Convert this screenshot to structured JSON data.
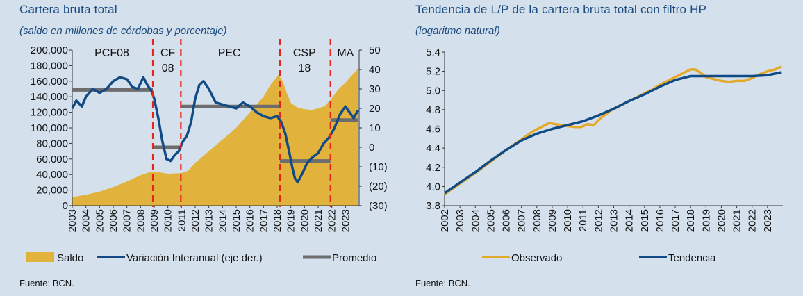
{
  "left": {
    "title": "Cartera bruta total",
    "subtitle": "(saldo en millones de córdobas y porcentaje)",
    "source": "Fuente: BCN."
  },
  "right": {
    "title": "Tendencia de L/P de la cartera bruta total con filtro HP",
    "subtitle": "(logaritmo natural)",
    "source": "Fuente: BCN."
  },
  "chart_data": [
    {
      "type": "area",
      "x_range": [
        2003,
        2024
      ],
      "x_ticks": [
        "2003",
        "2004",
        "2005",
        "2006",
        "2007",
        "2008",
        "2009",
        "2010",
        "2011",
        "2012",
        "2013",
        "2014",
        "2015",
        "2016",
        "2017",
        "2018",
        "2019",
        "2020",
        "2021",
        "2022",
        "2023"
      ],
      "y_left": {
        "range": [
          0,
          200000
        ],
        "ticks": [
          "0",
          "20,000",
          "40,000",
          "60,000",
          "80,000",
          "100,000",
          "120,000",
          "140,000",
          "160,000",
          "180,000",
          "200,000"
        ]
      },
      "y_right": {
        "range": [
          -30,
          50
        ],
        "ticks": [
          "(30)",
          "(20)",
          "(10)",
          "0",
          "10",
          "20",
          "30",
          "40",
          "50"
        ]
      },
      "legend_position": "bottom",
      "series": [
        {
          "name": "Saldo",
          "kind": "area",
          "axis": "left",
          "color": "#e1b33d",
          "x": [
            2003,
            2004,
            2005,
            2006,
            2007,
            2008,
            2008.8,
            2009.3,
            2010,
            2011,
            2011.5,
            2012,
            2013,
            2014,
            2015,
            2016,
            2017,
            2017.5,
            2018.1,
            2018.4,
            2018.7,
            2019,
            2019.5,
            2020,
            2020.5,
            2021,
            2021.5,
            2022,
            2022.5,
            2023,
            2023.5,
            2023.92
          ],
          "y": [
            11000,
            14000,
            18000,
            24000,
            31000,
            39000,
            44000,
            43000,
            41000,
            42000,
            45000,
            55000,
            70000,
            85000,
            100000,
            120000,
            140000,
            155000,
            168000,
            160000,
            145000,
            132000,
            126000,
            124000,
            123000,
            125000,
            128000,
            138000,
            150000,
            158000,
            168000,
            176000
          ]
        },
        {
          "name": "Variación Interanual (eje der.)",
          "kind": "line",
          "axis": "right",
          "color": "#114a84",
          "x": [
            2003,
            2003.3,
            2003.7,
            2004,
            2004.5,
            2005,
            2005.5,
            2006,
            2006.5,
            2007,
            2007.4,
            2007.8,
            2008.2,
            2008.5,
            2008.8,
            2009,
            2009.3,
            2009.6,
            2009.9,
            2010.2,
            2010.5,
            2010.8,
            2011.1,
            2011.4,
            2011.7,
            2012,
            2012.3,
            2012.6,
            2013,
            2013.5,
            2014,
            2014.5,
            2015,
            2015.5,
            2016,
            2016.5,
            2017,
            2017.5,
            2018,
            2018.3,
            2018.6,
            2018.9,
            2019.1,
            2019.3,
            2019.5,
            2019.8,
            2020.2,
            2020.6,
            2021,
            2021.4,
            2021.8,
            2022.2,
            2022.6,
            2023,
            2023.3,
            2023.6,
            2023.92
          ],
          "y": [
            20,
            24,
            21,
            26,
            30,
            28,
            30,
            34,
            36,
            35,
            31,
            30,
            36,
            32,
            29,
            25,
            15,
            3,
            -6,
            -7,
            -4,
            -2,
            3,
            6,
            13,
            25,
            32,
            34,
            30,
            23,
            22,
            21,
            20,
            23,
            21,
            18,
            16,
            15,
            16,
            13,
            7,
            -3,
            -10,
            -16,
            -18,
            -14,
            -8,
            -5,
            -3,
            2,
            5,
            10,
            17,
            21,
            18,
            15,
            19
          ]
        },
        {
          "name": "Promedio",
          "kind": "step",
          "axis": "right",
          "color": "#6d6d6d",
          "segments": [
            {
              "x": [
                2003,
                2008.9
              ],
              "y": 29.5
            },
            {
              "x": [
                2008.9,
                2010.95
              ],
              "y": 0
            },
            {
              "x": [
                2010.95,
                2018.2
              ],
              "y": 21
            },
            {
              "x": [
                2018.2,
                2021.9
              ],
              "y": -7
            },
            {
              "x": [
                2021.9,
                2023.92
              ],
              "y": 14
            }
          ]
        }
      ],
      "period_dividers": [
        2008.9,
        2010.95,
        2018.2,
        2021.9
      ],
      "period_labels": [
        {
          "text": "PCF08",
          "x": 2005.9
        },
        {
          "text": "CF 08",
          "x": 2010.0
        },
        {
          "text": "PEC",
          "x": 2014.5
        },
        {
          "text": "CSP 18",
          "x": 2020.0
        },
        {
          "text": "MA",
          "x": 2023.0
        }
      ]
    },
    {
      "type": "line",
      "x_range": [
        2002,
        2024
      ],
      "x_ticks": [
        "2002",
        "2003",
        "2004",
        "2005",
        "2006",
        "2007",
        "2008",
        "2009",
        "2010",
        "2011",
        "2012",
        "2013",
        "2014",
        "2015",
        "2016",
        "2017",
        "2018",
        "2019",
        "2020",
        "2021",
        "2022",
        "2023"
      ],
      "ylim": [
        3.8,
        5.4
      ],
      "y_ticks": [
        "3.8",
        "4.0",
        "4.2",
        "4.4",
        "4.6",
        "4.8",
        "5.0",
        "5.2",
        "5.4"
      ],
      "legend_position": "bottom",
      "series": [
        {
          "name": "Observado",
          "color": "#e2a92a",
          "x": [
            2002,
            2003,
            2004,
            2005,
            2006,
            2007,
            2007.7,
            2008.3,
            2008.8,
            2009.2,
            2009.6,
            2010,
            2010.5,
            2010.9,
            2011.3,
            2011.7,
            2012.2,
            2012.8,
            2013.5,
            2014,
            2014.5,
            2015,
            2015.5,
            2016,
            2016.5,
            2017,
            2017.5,
            2018,
            2018.3,
            2018.7,
            2019,
            2019.5,
            2020,
            2020.5,
            2021,
            2021.5,
            2022,
            2022.5,
            2023,
            2023.5,
            2023.92
          ],
          "y": [
            3.92,
            4.03,
            4.14,
            4.26,
            4.38,
            4.49,
            4.57,
            4.62,
            4.66,
            4.65,
            4.64,
            4.63,
            4.62,
            4.62,
            4.65,
            4.64,
            4.72,
            4.79,
            4.85,
            4.89,
            4.93,
            4.97,
            5.01,
            5.06,
            5.1,
            5.14,
            5.18,
            5.22,
            5.22,
            5.18,
            5.14,
            5.12,
            5.1,
            5.09,
            5.1,
            5.1,
            5.13,
            5.17,
            5.2,
            5.22,
            5.25
          ]
        },
        {
          "name": "Tendencia",
          "color": "#114a84",
          "x": [
            2002,
            2003,
            2004,
            2005,
            2006,
            2007,
            2008,
            2009,
            2010,
            2011,
            2012,
            2013,
            2014,
            2015,
            2016,
            2017,
            2017.5,
            2018,
            2019,
            2020,
            2021,
            2022,
            2023,
            2023.92
          ],
          "y": [
            3.93,
            4.04,
            4.15,
            4.27,
            4.38,
            4.48,
            4.55,
            4.6,
            4.64,
            4.68,
            4.74,
            4.81,
            4.89,
            4.96,
            5.04,
            5.11,
            5.13,
            5.15,
            5.15,
            5.15,
            5.15,
            5.15,
            5.16,
            5.19
          ]
        }
      ]
    }
  ]
}
